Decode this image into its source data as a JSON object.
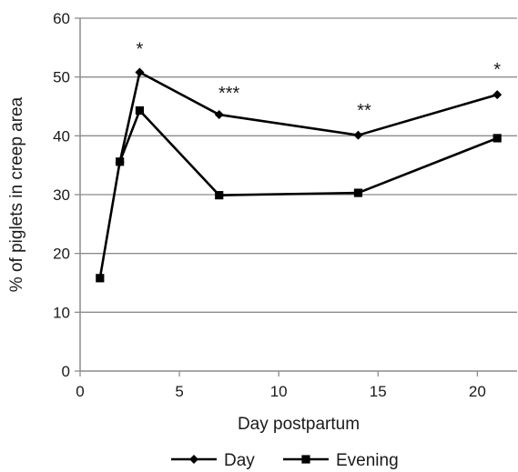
{
  "chart_data": {
    "type": "line",
    "xlabel": "Day postpartum",
    "ylabel": "% of piglets in creep area",
    "xlim": [
      0,
      22
    ],
    "ylim": [
      0,
      60
    ],
    "x_ticks": [
      0,
      5,
      10,
      15,
      20
    ],
    "y_ticks": [
      0,
      10,
      20,
      30,
      40,
      50,
      60
    ],
    "grid": "horizontal",
    "legend_position": "bottom",
    "series": [
      {
        "name": "Day",
        "marker": "diamond",
        "color": "#000000",
        "x": [
          2,
          3,
          7,
          14,
          21
        ],
        "y": [
          35.5,
          50.8,
          43.6,
          40.1,
          47.0
        ]
      },
      {
        "name": "Evening",
        "marker": "square",
        "color": "#000000",
        "x": [
          1,
          2,
          3,
          7,
          14,
          21
        ],
        "y": [
          15.8,
          35.6,
          44.3,
          29.9,
          30.3,
          39.6
        ]
      }
    ],
    "annotations": [
      {
        "text": "*",
        "x": 3,
        "y": 55
      },
      {
        "text": "***",
        "x": 7.5,
        "y": 47.5
      },
      {
        "text": "**",
        "x": 14.3,
        "y": 44.5
      },
      {
        "text": "*",
        "x": 21,
        "y": 51.5
      }
    ]
  }
}
